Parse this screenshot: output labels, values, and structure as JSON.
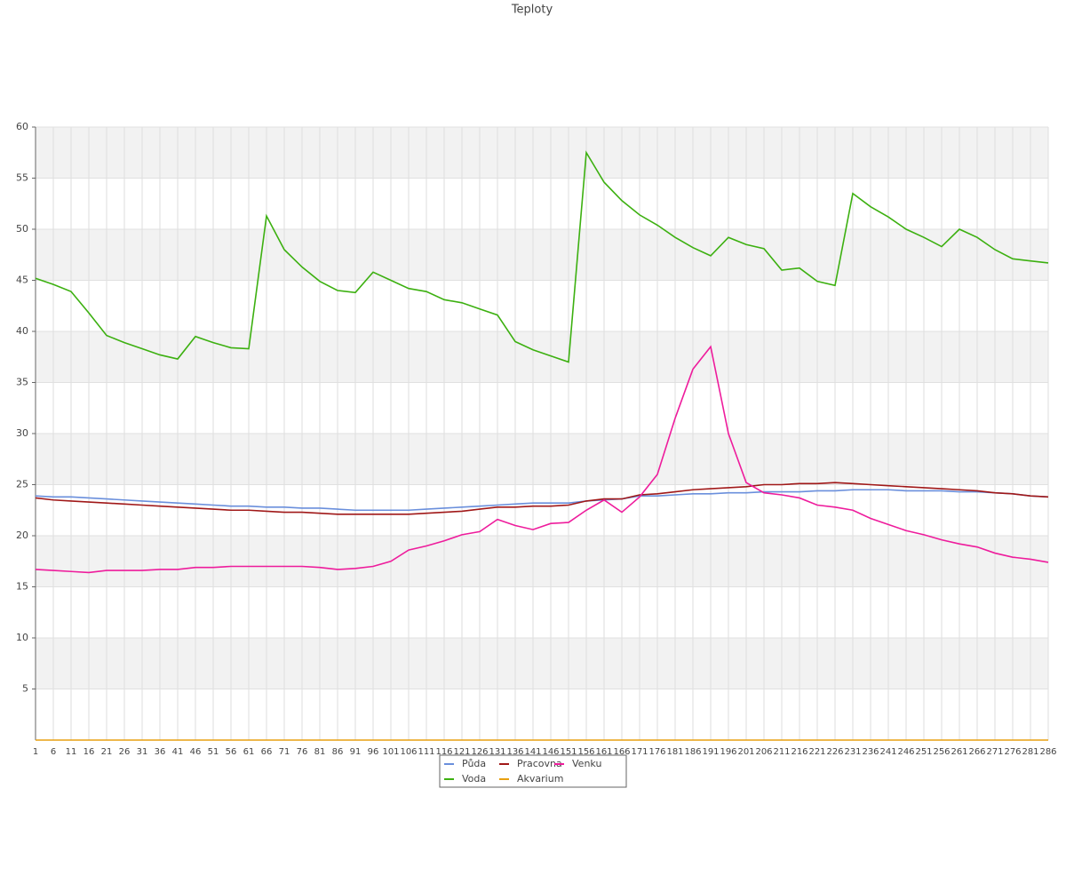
{
  "chart_data": {
    "type": "line",
    "title": "Teploty",
    "x": [
      1,
      6,
      11,
      16,
      21,
      26,
      31,
      36,
      41,
      46,
      51,
      56,
      61,
      66,
      71,
      76,
      81,
      86,
      91,
      96,
      101,
      106,
      111,
      116,
      121,
      126,
      131,
      136,
      141,
      146,
      151,
      156,
      161,
      166,
      171,
      176,
      181,
      186,
      191,
      196,
      201,
      206,
      211,
      216,
      221,
      226,
      231,
      236,
      241,
      246,
      251,
      256,
      261,
      266,
      271,
      276,
      281,
      286
    ],
    "xlim": [
      1,
      286
    ],
    "ylim": [
      0,
      60
    ],
    "yticks": [
      5,
      10,
      15,
      20,
      25,
      30,
      35,
      40,
      45,
      50,
      55,
      60
    ],
    "grid": true,
    "series": [
      {
        "name": "Půda",
        "color": "#6a8fdc",
        "values": [
          23.9,
          23.8,
          23.8,
          23.7,
          23.6,
          23.5,
          23.4,
          23.3,
          23.2,
          23.1,
          23.0,
          22.9,
          22.9,
          22.8,
          22.8,
          22.7,
          22.7,
          22.6,
          22.5,
          22.5,
          22.5,
          22.5,
          22.6,
          22.7,
          22.8,
          22.9,
          23.0,
          23.1,
          23.2,
          23.2,
          23.2,
          23.4,
          23.5,
          23.6,
          23.9,
          23.9,
          24.0,
          24.1,
          24.1,
          24.2,
          24.2,
          24.3,
          24.3,
          24.3,
          24.4,
          24.4,
          24.5,
          24.5,
          24.5,
          24.4,
          24.4,
          24.4,
          24.3,
          24.3,
          24.2,
          24.1,
          23.9,
          23.8
        ]
      },
      {
        "name": "Pracovna",
        "color": "#a01818",
        "values": [
          23.7,
          23.5,
          23.4,
          23.3,
          23.2,
          23.1,
          23.0,
          22.9,
          22.8,
          22.7,
          22.6,
          22.5,
          22.5,
          22.4,
          22.3,
          22.3,
          22.2,
          22.1,
          22.1,
          22.1,
          22.1,
          22.1,
          22.2,
          22.3,
          22.4,
          22.6,
          22.8,
          22.8,
          22.9,
          22.9,
          23.0,
          23.4,
          23.6,
          23.6,
          24.0,
          24.1,
          24.3,
          24.5,
          24.6,
          24.7,
          24.8,
          25.0,
          25.0,
          25.1,
          25.1,
          25.2,
          25.1,
          25.0,
          24.9,
          24.8,
          24.7,
          24.6,
          24.5,
          24.4,
          24.2,
          24.1,
          23.9,
          23.8
        ]
      },
      {
        "name": "Venku",
        "color": "#ee1c9c",
        "values": [
          16.7,
          16.6,
          16.5,
          16.4,
          16.6,
          16.6,
          16.6,
          16.7,
          16.7,
          16.9,
          16.9,
          17.0,
          17.0,
          17.0,
          17.0,
          17.0,
          16.9,
          16.7,
          16.8,
          17.0,
          17.5,
          18.6,
          19.0,
          19.5,
          20.1,
          20.4,
          21.6,
          21.0,
          20.6,
          21.2,
          21.3,
          22.5,
          23.5,
          22.3,
          23.8,
          26.0,
          31.5,
          36.3,
          38.5,
          30.0,
          25.2,
          24.2,
          24.0,
          23.7,
          23.0,
          22.8,
          22.5,
          21.7,
          21.1,
          20.5,
          20.1,
          19.6,
          19.2,
          18.9,
          18.3,
          17.9,
          17.7,
          17.4
        ]
      },
      {
        "name": "Voda",
        "color": "#3cb010",
        "values": [
          45.2,
          44.6,
          43.9,
          41.8,
          39.6,
          38.9,
          38.3,
          37.7,
          37.3,
          39.5,
          38.9,
          38.4,
          38.3,
          51.3,
          48.0,
          46.3,
          44.9,
          44.0,
          43.8,
          45.8,
          45.0,
          44.2,
          43.9,
          43.1,
          42.8,
          42.2,
          41.6,
          39.0,
          38.2,
          37.6,
          37.0,
          57.5,
          54.6,
          52.8,
          51.4,
          50.4,
          49.2,
          48.2,
          47.4,
          49.2,
          48.5,
          48.1,
          46.0,
          46.2,
          44.9,
          44.5,
          53.5,
          52.2,
          51.2,
          50.0,
          49.2,
          48.3,
          50.0,
          49.2,
          48.0,
          47.1,
          46.9,
          46.7
        ]
      },
      {
        "name": "Akvarium",
        "color": "#e8a010",
        "values": [
          0,
          0,
          0,
          0,
          0,
          0,
          0,
          0,
          0,
          0,
          0,
          0,
          0,
          0,
          0,
          0,
          0,
          0,
          0,
          0,
          0,
          0,
          0,
          0,
          0,
          0,
          0,
          0,
          0,
          0,
          0,
          0,
          0,
          0,
          0,
          0,
          0,
          0,
          0,
          0,
          0,
          0,
          0,
          0,
          0,
          0,
          0,
          0,
          0,
          0,
          0,
          0,
          0,
          0,
          0,
          0,
          0,
          0
        ]
      }
    ]
  }
}
